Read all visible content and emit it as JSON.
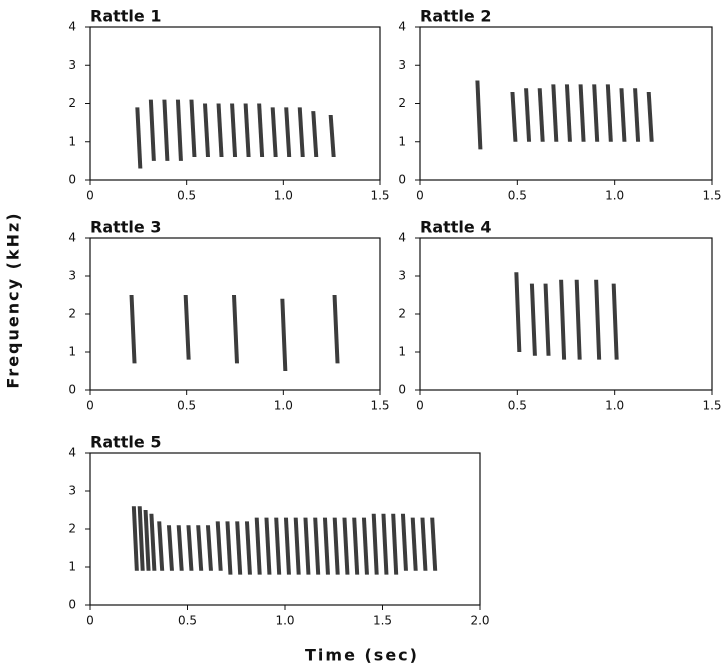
{
  "figure": {
    "xlabel": "Time (sec)",
    "ylabel": "Frequency (kHz)"
  },
  "chart_data": [
    {
      "type": "spectrogram",
      "title": "Rattle 1",
      "xlim": [
        0,
        1.5
      ],
      "ylim": [
        0,
        4
      ],
      "xticks": [
        0,
        0.5,
        {
          "value": 1,
          "label": "1.0"
        },
        1.5
      ],
      "yticks": [
        0,
        1,
        2,
        3,
        4
      ],
      "x": [
        0.25,
        0.32,
        0.39,
        0.46,
        0.53,
        0.6,
        0.67,
        0.74,
        0.81,
        0.88,
        0.95,
        1.02,
        1.09,
        1.16,
        1.25
      ],
      "high": [
        1.9,
        2.1,
        2.1,
        2.1,
        2.1,
        2.0,
        2.0,
        2.0,
        2.0,
        2.0,
        1.9,
        1.9,
        1.9,
        1.8,
        1.7
      ],
      "low": [
        0.3,
        0.5,
        0.5,
        0.5,
        0.6,
        0.6,
        0.6,
        0.6,
        0.6,
        0.6,
        0.6,
        0.6,
        0.6,
        0.6,
        0.6
      ]
    },
    {
      "type": "spectrogram",
      "title": "Rattle 2",
      "xlim": [
        0,
        1.5
      ],
      "ylim": [
        0,
        4
      ],
      "xticks": [
        0,
        0.5,
        {
          "value": 1,
          "label": "1.0"
        },
        1.5
      ],
      "yticks": [
        0,
        1,
        2,
        3,
        4
      ],
      "x": [
        0.3,
        0.48,
        0.55,
        0.62,
        0.69,
        0.76,
        0.83,
        0.9,
        0.97,
        1.04,
        1.11,
        1.18
      ],
      "high": [
        2.6,
        2.3,
        2.4,
        2.4,
        2.5,
        2.5,
        2.5,
        2.5,
        2.5,
        2.4,
        2.4,
        2.3
      ],
      "low": [
        0.8,
        1.0,
        1.0,
        1.0,
        1.0,
        1.0,
        1.0,
        1.0,
        1.0,
        1.0,
        1.0,
        1.0
      ]
    },
    {
      "type": "spectrogram",
      "title": "Rattle 3",
      "xlim": [
        0,
        1.5
      ],
      "ylim": [
        0,
        4
      ],
      "xticks": [
        0,
        0.5,
        {
          "value": 1,
          "label": "1.0"
        },
        1.5
      ],
      "yticks": [
        0,
        1,
        2,
        3,
        4
      ],
      "x": [
        0.22,
        0.5,
        0.75,
        1.0,
        1.27
      ],
      "high": [
        2.5,
        2.5,
        2.5,
        2.4,
        2.5
      ],
      "low": [
        0.7,
        0.8,
        0.7,
        0.5,
        0.7
      ]
    },
    {
      "type": "spectrogram",
      "title": "Rattle 4",
      "xlim": [
        0,
        1.5
      ],
      "ylim": [
        0,
        4
      ],
      "xticks": [
        0,
        0.5,
        {
          "value": 1,
          "label": "1.0"
        },
        1.5
      ],
      "yticks": [
        0,
        1,
        2,
        3,
        4
      ],
      "x": [
        0.5,
        0.58,
        0.65,
        0.73,
        0.81,
        0.91,
        1.0
      ],
      "high": [
        3.1,
        2.8,
        2.8,
        2.9,
        2.9,
        2.9,
        2.8
      ],
      "low": [
        1.0,
        0.9,
        0.9,
        0.8,
        0.8,
        0.8,
        0.8
      ]
    },
    {
      "type": "spectrogram",
      "title": "Rattle 5",
      "xlim": [
        0,
        2
      ],
      "ylim": [
        0,
        4
      ],
      "xticks": [
        0,
        0.5,
        {
          "value": 1,
          "label": "1.0"
        },
        1.5,
        {
          "value": 2,
          "label": "2.0"
        }
      ],
      "yticks": [
        0,
        1,
        2,
        3,
        4
      ],
      "x": [
        0.23,
        0.26,
        0.29,
        0.32,
        0.36,
        0.41,
        0.46,
        0.51,
        0.56,
        0.61,
        0.66,
        0.71,
        0.76,
        0.81,
        0.86,
        0.91,
        0.96,
        1.01,
        1.06,
        1.11,
        1.16,
        1.21,
        1.26,
        1.31,
        1.36,
        1.41,
        1.46,
        1.51,
        1.56,
        1.61,
        1.66,
        1.71,
        1.76
      ],
      "high": [
        2.6,
        2.6,
        2.5,
        2.4,
        2.2,
        2.1,
        2.1,
        2.1,
        2.1,
        2.1,
        2.2,
        2.2,
        2.2,
        2.2,
        2.3,
        2.3,
        2.3,
        2.3,
        2.3,
        2.3,
        2.3,
        2.3,
        2.3,
        2.3,
        2.3,
        2.3,
        2.4,
        2.4,
        2.4,
        2.4,
        2.3,
        2.3,
        2.3
      ],
      "low": [
        0.9,
        0.9,
        0.9,
        0.9,
        0.9,
        0.9,
        0.9,
        0.9,
        0.9,
        0.9,
        0.9,
        0.8,
        0.8,
        0.8,
        0.8,
        0.8,
        0.8,
        0.8,
        0.8,
        0.8,
        0.8,
        0.8,
        0.8,
        0.8,
        0.8,
        0.8,
        0.8,
        0.8,
        0.8,
        0.9,
        0.9,
        0.9,
        0.9
      ]
    }
  ]
}
